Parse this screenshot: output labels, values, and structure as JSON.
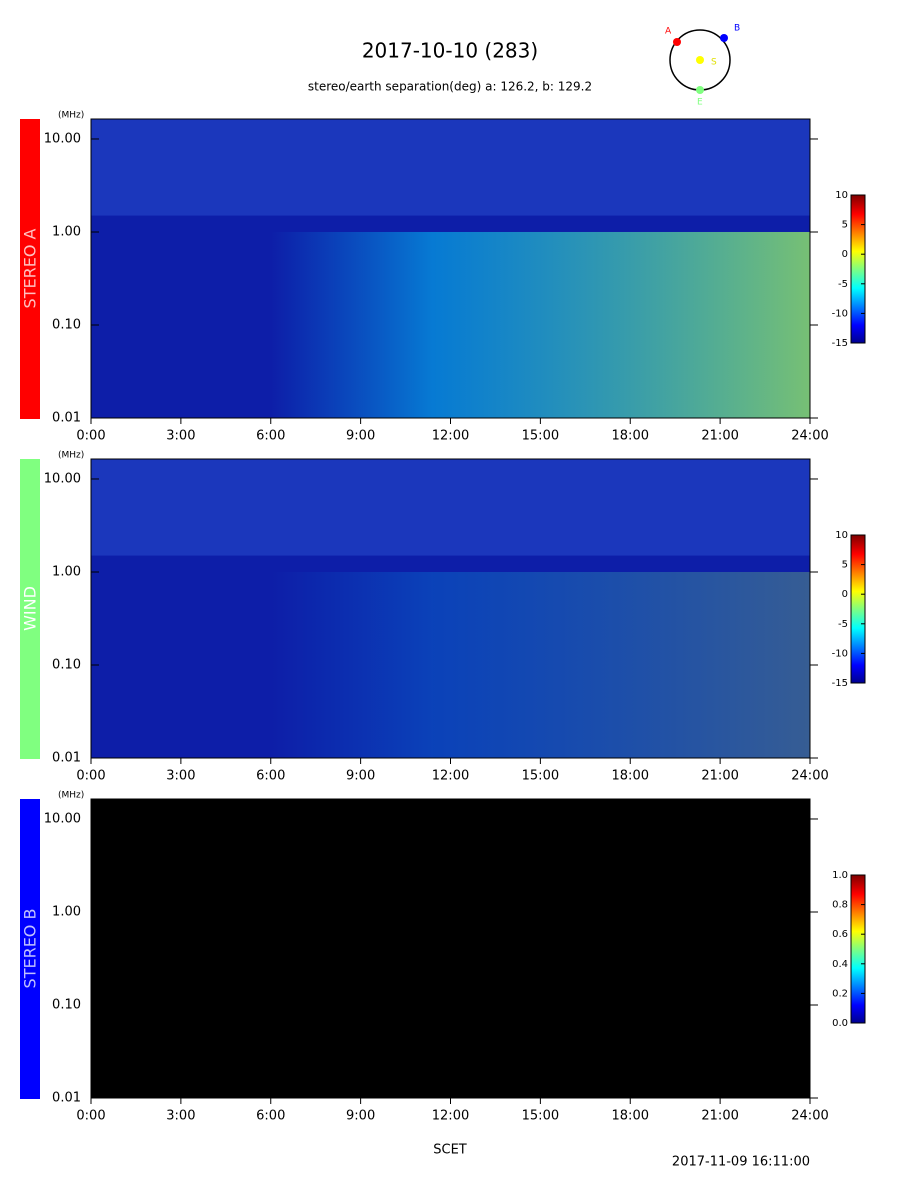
{
  "header": {
    "title": "2017-10-10 (283)",
    "subtitle": "stereo/earth separation(deg) a: 126.2, b: 129.2",
    "orbit_labels": [
      "A",
      "B",
      "S",
      "E"
    ],
    "xlabel": "SCET",
    "timestamp": "2017-11-09 16:11:00"
  },
  "chart_data": [
    {
      "type": "spectrogram",
      "name": "STEREO A",
      "color": "#ff0000",
      "background": "#0d1ea8",
      "ylabel": "(MHz)",
      "log_y": true,
      "ylim": [
        0.01,
        16.4
      ],
      "yticks": [
        {
          "value": 0.01,
          "label": "0.01"
        },
        {
          "value": 0.1,
          "label": "0.10"
        },
        {
          "value": 1,
          "label": "1.00"
        },
        {
          "value": 10,
          "label": "10.00"
        }
      ],
      "xlim": [
        0,
        24
      ],
      "xticks": [
        {
          "value": 0,
          "label": "0:00"
        },
        {
          "value": 3,
          "label": "3:00"
        },
        {
          "value": 6,
          "label": "6:00"
        },
        {
          "value": 9,
          "label": "9:00"
        },
        {
          "value": 12,
          "label": "12:00"
        },
        {
          "value": 15,
          "label": "15:00"
        },
        {
          "value": 18,
          "label": "18:00"
        },
        {
          "value": 21,
          "label": "21:00"
        },
        {
          "value": 24,
          "label": "24:00"
        }
      ],
      "colorbar": {
        "lim": [
          -15,
          10
        ],
        "ticks": [
          10,
          5,
          0,
          -5,
          -10,
          -15
        ]
      }
    },
    {
      "type": "spectrogram",
      "name": "WIND",
      "color": "#80ff80",
      "background": "#0d1ea8",
      "ylabel": "(MHz)",
      "log_y": true,
      "ylim": [
        0.01,
        16.4
      ],
      "yticks": [
        {
          "value": 0.01,
          "label": "0.01"
        },
        {
          "value": 0.1,
          "label": "0.10"
        },
        {
          "value": 1,
          "label": "1.00"
        },
        {
          "value": 10,
          "label": "10.00"
        }
      ],
      "xlim": [
        0,
        24
      ],
      "xticks": [
        {
          "value": 0,
          "label": "0:00"
        },
        {
          "value": 3,
          "label": "3:00"
        },
        {
          "value": 6,
          "label": "6:00"
        },
        {
          "value": 9,
          "label": "9:00"
        },
        {
          "value": 12,
          "label": "12:00"
        },
        {
          "value": 15,
          "label": "15:00"
        },
        {
          "value": 18,
          "label": "18:00"
        },
        {
          "value": 21,
          "label": "21:00"
        },
        {
          "value": 24,
          "label": "24:00"
        }
      ],
      "colorbar": {
        "lim": [
          -15,
          10
        ],
        "ticks": [
          10,
          5,
          0,
          -5,
          -10,
          -15
        ]
      }
    },
    {
      "type": "spectrogram",
      "name": "STEREO B",
      "color": "#0000ff",
      "background": "#000000",
      "ylabel": "(MHz)",
      "log_y": true,
      "ylim": [
        0.01,
        16.4
      ],
      "yticks": [
        {
          "value": 0.01,
          "label": "0.01"
        },
        {
          "value": 0.1,
          "label": "0.10"
        },
        {
          "value": 1,
          "label": "1.00"
        },
        {
          "value": 10,
          "label": "10.00"
        }
      ],
      "xlim": [
        0,
        24
      ],
      "xticks": [
        {
          "value": 0,
          "label": "0:00"
        },
        {
          "value": 3,
          "label": "3:00"
        },
        {
          "value": 6,
          "label": "6:00"
        },
        {
          "value": 9,
          "label": "9:00"
        },
        {
          "value": 12,
          "label": "12:00"
        },
        {
          "value": 15,
          "label": "15:00"
        },
        {
          "value": 18,
          "label": "18:00"
        },
        {
          "value": 21,
          "label": "21:00"
        },
        {
          "value": 24,
          "label": "24:00"
        }
      ],
      "colorbar": {
        "lim": [
          0,
          1
        ],
        "ticks": [
          {
            "value": 1,
            "label": "1.0"
          },
          0.8,
          0.6,
          0.4,
          0.2,
          {
            "value": 0,
            "label": "0.0"
          }
        ]
      }
    }
  ]
}
